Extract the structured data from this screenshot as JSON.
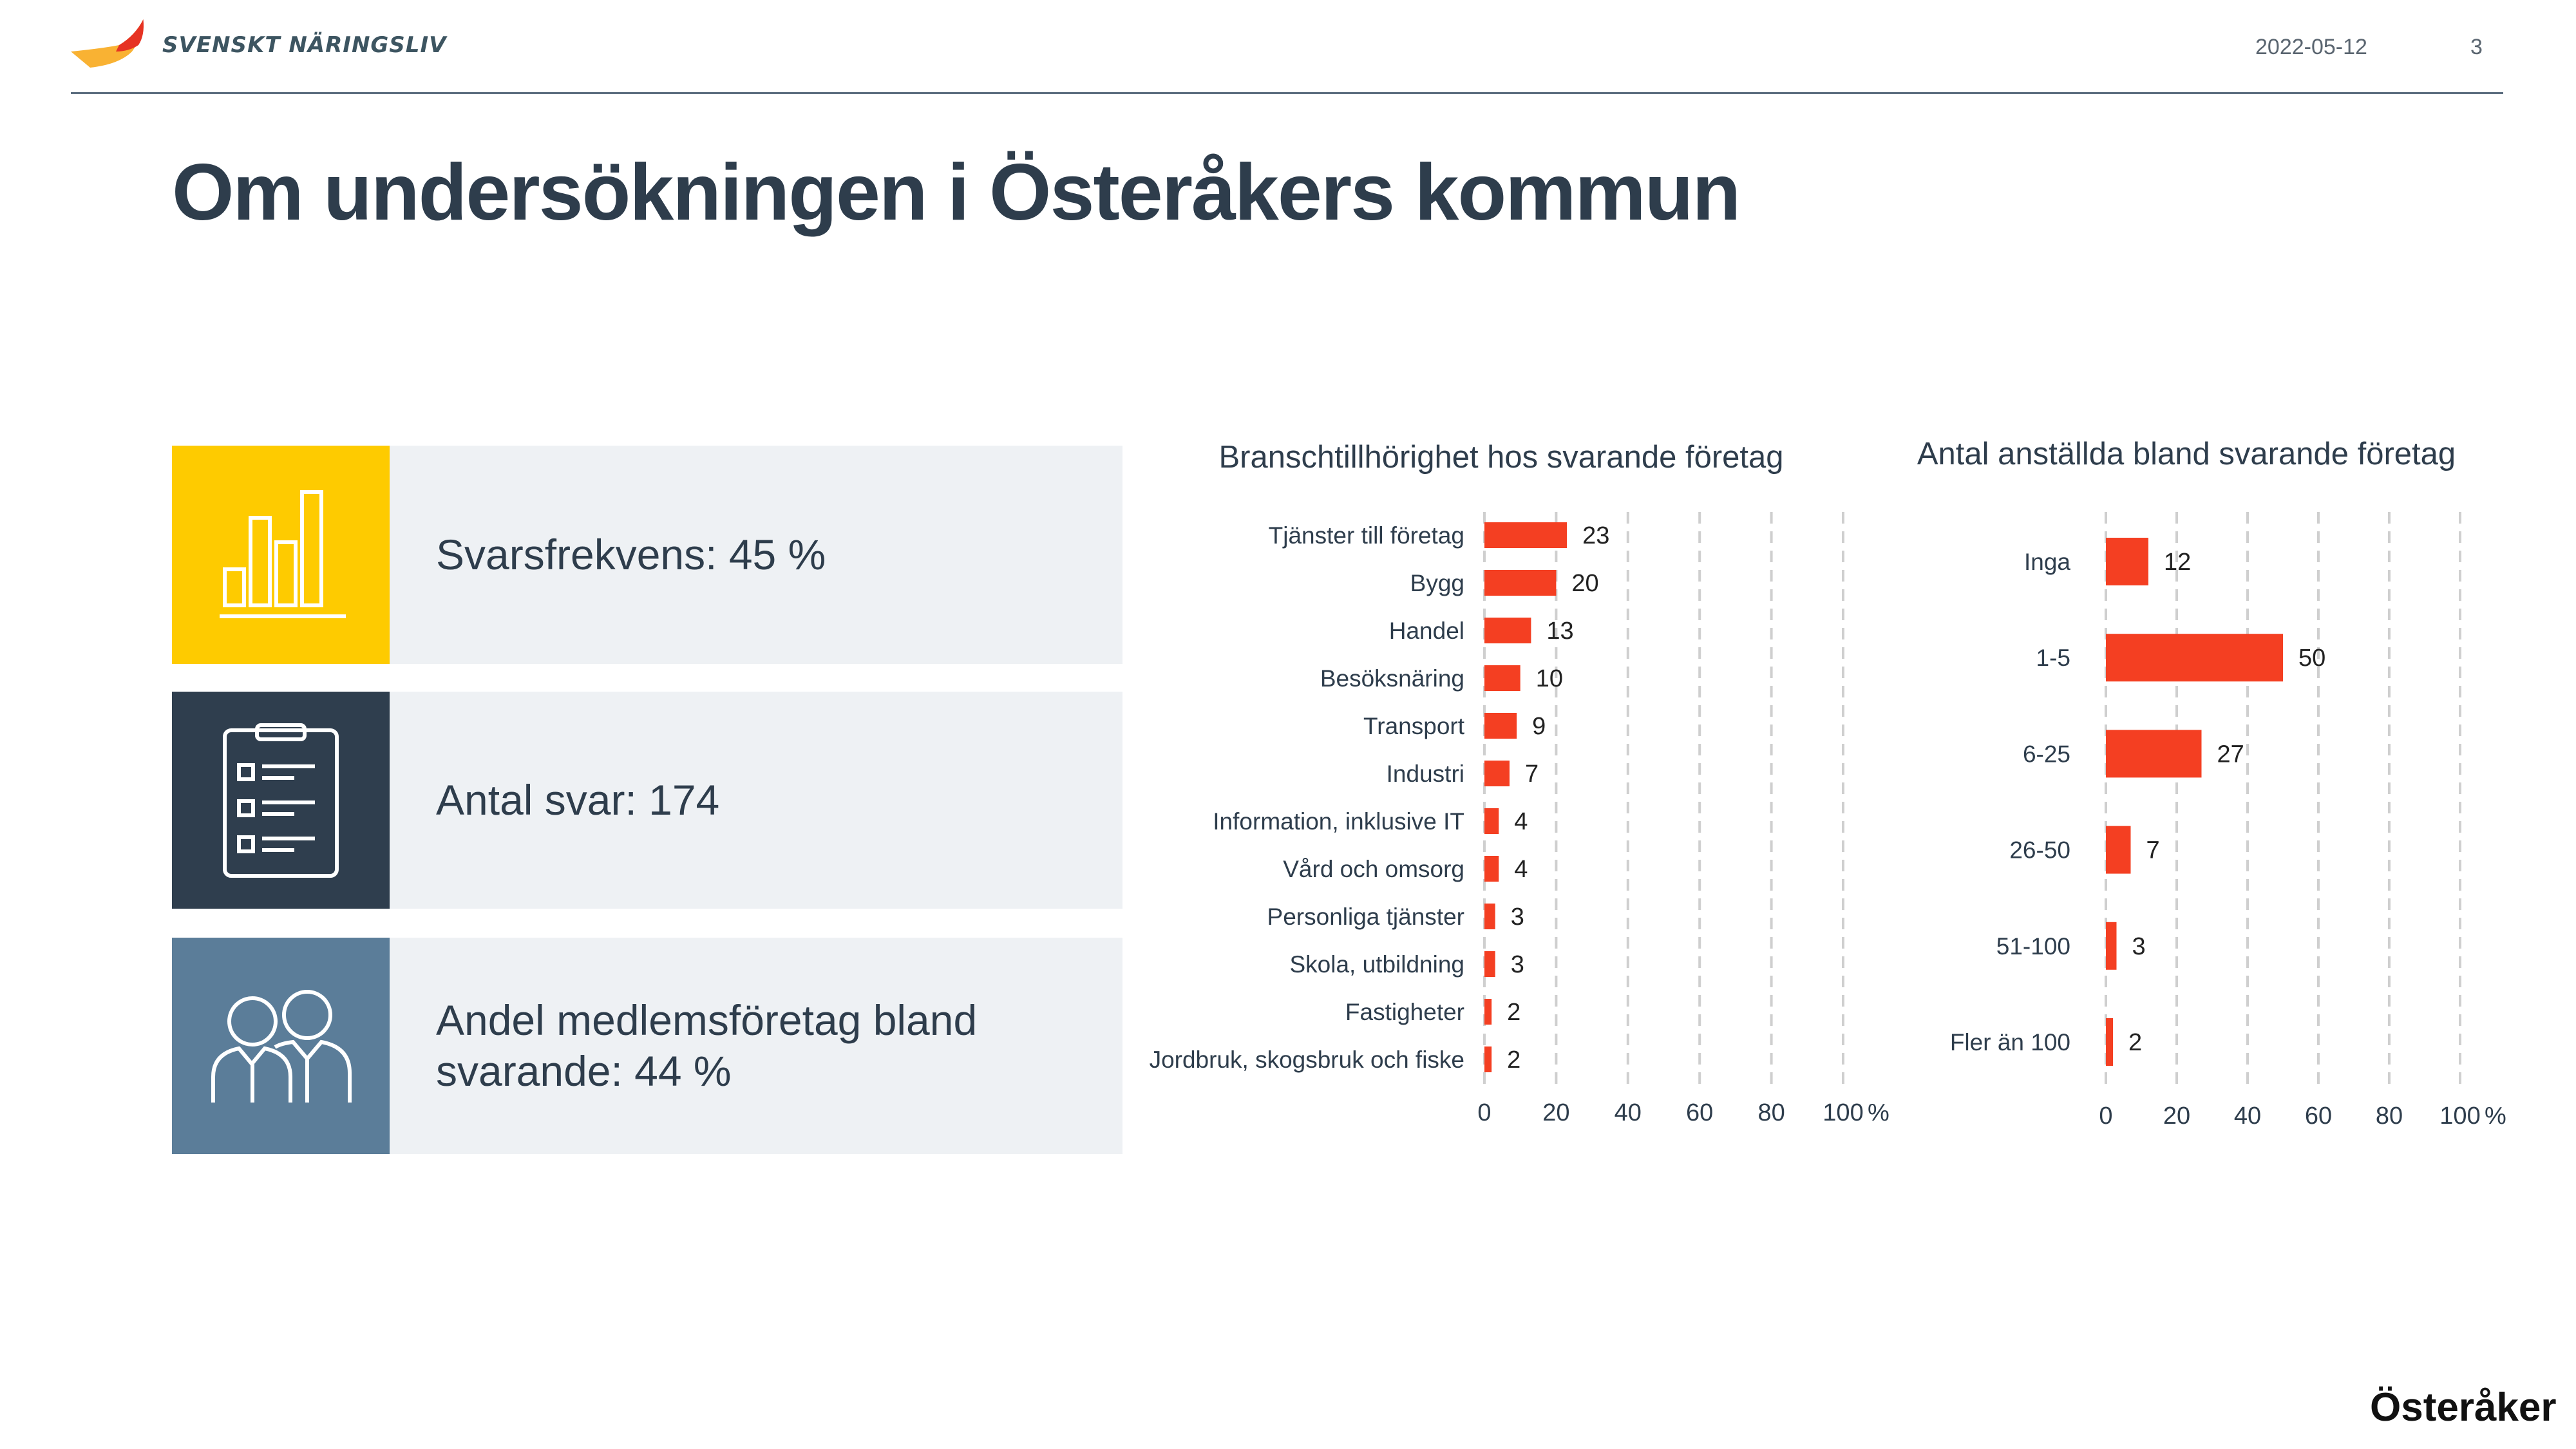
{
  "header": {
    "logo_text": "SVENSKT NÄRINGSLIV",
    "date": "2022-05-12",
    "page_number": "3"
  },
  "title": "Om undersökningen i Österåkers kommun",
  "cards": [
    {
      "label": "Svarsfrekvens: 45 %",
      "icon": "bar-chart-icon",
      "color": "#fecb00"
    },
    {
      "label": "Antal svar: 174",
      "icon": "clipboard-checklist-icon",
      "color": "#2f3e4e"
    },
    {
      "label": "Andel medlemsföretag bland svarande: 44 %",
      "icon": "people-icon",
      "color": "#5b7d99"
    }
  ],
  "chart_data": [
    {
      "type": "bar",
      "orientation": "horizontal",
      "title": "Branschtillhörighet hos svarande företag",
      "categories": [
        "Tjänster till företag",
        "Bygg",
        "Handel",
        "Besöksnäring",
        "Transport",
        "Industri",
        "Information, inklusive IT",
        "Vård och omsorg",
        "Personliga tjänster",
        "Skola, utbildning",
        "Fastigheter",
        "Jordbruk, skogsbruk och fiske"
      ],
      "values": [
        23,
        20,
        13,
        10,
        9,
        7,
        4,
        4,
        3,
        3,
        2,
        2
      ],
      "xlim": [
        0,
        100
      ],
      "xticks": [
        "0",
        "20",
        "40",
        "60",
        "80",
        "100"
      ],
      "unit": "%",
      "grid": "vertical-dashed",
      "color": "#f43f22"
    },
    {
      "type": "bar",
      "orientation": "horizontal",
      "title": "Antal anställda bland svarande företag",
      "categories": [
        "Inga",
        "1-5",
        "6-25",
        "26-50",
        "51-100",
        "Fler än 100"
      ],
      "values": [
        12,
        50,
        27,
        7,
        3,
        2
      ],
      "xlim": [
        0,
        100
      ],
      "xticks": [
        "0",
        "20",
        "40",
        "60",
        "80",
        "100"
      ],
      "unit": "%",
      "grid": "vertical-dashed",
      "color": "#f43f22"
    }
  ],
  "footer": {
    "municipality": "Österåker"
  }
}
